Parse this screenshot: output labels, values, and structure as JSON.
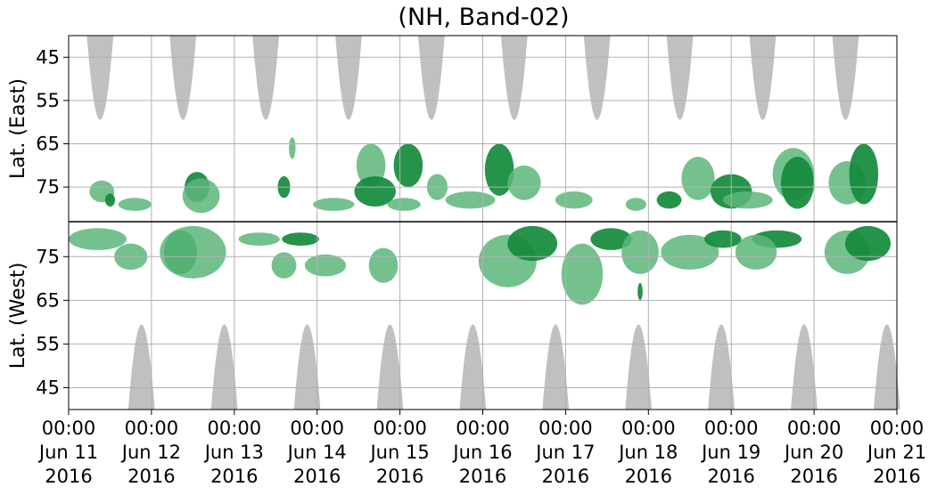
{
  "chart_data": {
    "type": "heatmap",
    "title": "(NH, Band-02)",
    "panels": [
      {
        "name": "East",
        "ylabel": "Lat. (East)",
        "yticks": [
          45,
          55,
          65,
          75
        ],
        "ylim": [
          40,
          83
        ]
      },
      {
        "name": "West",
        "ylabel": "Lat. (West)",
        "yticks": [
          75,
          65,
          55,
          45
        ],
        "ylim": [
          83,
          40
        ]
      }
    ],
    "x_ticks": [
      {
        "time": "00:00",
        "date": "Jun 11",
        "year": "2016"
      },
      {
        "time": "00:00",
        "date": "Jun 12",
        "year": "2016"
      },
      {
        "time": "00:00",
        "date": "Jun 13",
        "year": "2016"
      },
      {
        "time": "00:00",
        "date": "Jun 14",
        "year": "2016"
      },
      {
        "time": "00:00",
        "date": "Jun 15",
        "year": "2016"
      },
      {
        "time": "00:00",
        "date": "Jun 16",
        "year": "2016"
      },
      {
        "time": "00:00",
        "date": "Jun 17",
        "year": "2016"
      },
      {
        "time": "00:00",
        "date": "Jun 18",
        "year": "2016"
      },
      {
        "time": "00:00",
        "date": "Jun 19",
        "year": "2016"
      },
      {
        "time": "00:00",
        "date": "Jun 20",
        "year": "2016"
      },
      {
        "time": "00:00",
        "date": "Jun 21",
        "year": "2016"
      }
    ],
    "grid": true,
    "colors": {
      "shade": "#c0c0c0",
      "light": "#5cb67a",
      "dark": "#138a3c",
      "grid": "#b0b0b0"
    },
    "shade_regions": [
      {
        "panel": "East",
        "day": 0.38,
        "half_width_days": 0.16,
        "min_lat": 59.5
      },
      {
        "panel": "East",
        "day": 1.38,
        "half_width_days": 0.16,
        "min_lat": 59.5
      },
      {
        "panel": "East",
        "day": 2.38,
        "half_width_days": 0.16,
        "min_lat": 59.5
      },
      {
        "panel": "East",
        "day": 3.38,
        "half_width_days": 0.16,
        "min_lat": 59.5
      },
      {
        "panel": "East",
        "day": 4.38,
        "half_width_days": 0.16,
        "min_lat": 59.5
      },
      {
        "panel": "East",
        "day": 5.38,
        "half_width_days": 0.16,
        "min_lat": 59.5
      },
      {
        "panel": "East",
        "day": 6.38,
        "half_width_days": 0.16,
        "min_lat": 59.5
      },
      {
        "panel": "East",
        "day": 7.38,
        "half_width_days": 0.16,
        "min_lat": 59.5
      },
      {
        "panel": "East",
        "day": 8.38,
        "half_width_days": 0.16,
        "min_lat": 59.5
      },
      {
        "panel": "East",
        "day": 9.38,
        "half_width_days": 0.16,
        "min_lat": 59.5
      },
      {
        "panel": "West",
        "day": 0.88,
        "half_width_days": 0.16,
        "min_lat": 59.5
      },
      {
        "panel": "West",
        "day": 1.88,
        "half_width_days": 0.16,
        "min_lat": 59.5
      },
      {
        "panel": "West",
        "day": 2.88,
        "half_width_days": 0.16,
        "min_lat": 59.5
      },
      {
        "panel": "West",
        "day": 3.88,
        "half_width_days": 0.16,
        "min_lat": 59.5
      },
      {
        "panel": "West",
        "day": 4.88,
        "half_width_days": 0.16,
        "min_lat": 59.5
      },
      {
        "panel": "West",
        "day": 5.88,
        "half_width_days": 0.16,
        "min_lat": 59.5
      },
      {
        "panel": "West",
        "day": 6.88,
        "half_width_days": 0.16,
        "min_lat": 59.5
      },
      {
        "panel": "West",
        "day": 7.88,
        "half_width_days": 0.16,
        "min_lat": 59.5
      },
      {
        "panel": "West",
        "day": 8.88,
        "half_width_days": 0.16,
        "min_lat": 59.5
      },
      {
        "panel": "West",
        "day": 9.88,
        "half_width_days": 0.16,
        "min_lat": 59.5
      }
    ],
    "blobs": [
      {
        "panel": "East",
        "day": 0.4,
        "lat": 76,
        "day_w": 0.3,
        "lat_h": 5,
        "level": "light"
      },
      {
        "panel": "East",
        "day": 0.5,
        "lat": 78,
        "day_w": 0.12,
        "lat_h": 3,
        "level": "dark"
      },
      {
        "panel": "East",
        "day": 0.8,
        "lat": 79,
        "day_w": 0.4,
        "lat_h": 3,
        "level": "light"
      },
      {
        "panel": "East",
        "day": 1.55,
        "lat": 75,
        "day_w": 0.3,
        "lat_h": 7,
        "level": "dark"
      },
      {
        "panel": "East",
        "day": 1.6,
        "lat": 77,
        "day_w": 0.45,
        "lat_h": 8,
        "level": "light"
      },
      {
        "panel": "East",
        "day": 2.7,
        "lat": 66,
        "day_w": 0.08,
        "lat_h": 5,
        "level": "light"
      },
      {
        "panel": "East",
        "day": 2.6,
        "lat": 75,
        "day_w": 0.15,
        "lat_h": 5,
        "level": "dark"
      },
      {
        "panel": "East",
        "day": 3.2,
        "lat": 79,
        "day_w": 0.5,
        "lat_h": 3,
        "level": "light"
      },
      {
        "panel": "East",
        "day": 3.65,
        "lat": 70,
        "day_w": 0.35,
        "lat_h": 10,
        "level": "light"
      },
      {
        "panel": "East",
        "day": 3.7,
        "lat": 76,
        "day_w": 0.5,
        "lat_h": 7,
        "level": "dark"
      },
      {
        "panel": "East",
        "day": 4.05,
        "lat": 79,
        "day_w": 0.4,
        "lat_h": 3,
        "level": "light"
      },
      {
        "panel": "East",
        "day": 4.1,
        "lat": 70,
        "day_w": 0.35,
        "lat_h": 10,
        "level": "dark"
      },
      {
        "panel": "East",
        "day": 4.45,
        "lat": 75,
        "day_w": 0.25,
        "lat_h": 6,
        "level": "light"
      },
      {
        "panel": "East",
        "day": 4.85,
        "lat": 78,
        "day_w": 0.6,
        "lat_h": 4,
        "level": "light"
      },
      {
        "panel": "East",
        "day": 5.2,
        "lat": 71,
        "day_w": 0.35,
        "lat_h": 12,
        "level": "dark"
      },
      {
        "panel": "East",
        "day": 5.5,
        "lat": 74,
        "day_w": 0.4,
        "lat_h": 8,
        "level": "light"
      },
      {
        "panel": "East",
        "day": 6.1,
        "lat": 78,
        "day_w": 0.45,
        "lat_h": 4,
        "level": "light"
      },
      {
        "panel": "East",
        "day": 6.85,
        "lat": 79,
        "day_w": 0.25,
        "lat_h": 3,
        "level": "light"
      },
      {
        "panel": "East",
        "day": 7.25,
        "lat": 78,
        "day_w": 0.3,
        "lat_h": 4,
        "level": "dark"
      },
      {
        "panel": "East",
        "day": 7.6,
        "lat": 73,
        "day_w": 0.4,
        "lat_h": 10,
        "level": "light"
      },
      {
        "panel": "East",
        "day": 8.0,
        "lat": 76,
        "day_w": 0.5,
        "lat_h": 8,
        "level": "dark"
      },
      {
        "panel": "East",
        "day": 8.2,
        "lat": 78,
        "day_w": 0.6,
        "lat_h": 4,
        "level": "light"
      },
      {
        "panel": "East",
        "day": 8.75,
        "lat": 72,
        "day_w": 0.5,
        "lat_h": 12,
        "level": "light"
      },
      {
        "panel": "East",
        "day": 8.8,
        "lat": 74,
        "day_w": 0.4,
        "lat_h": 12,
        "level": "dark"
      },
      {
        "panel": "East",
        "day": 9.4,
        "lat": 74,
        "day_w": 0.45,
        "lat_h": 10,
        "level": "light"
      },
      {
        "panel": "East",
        "day": 9.6,
        "lat": 72,
        "day_w": 0.35,
        "lat_h": 14,
        "level": "dark"
      },
      {
        "panel": "West",
        "day": 0.35,
        "lat": 79,
        "day_w": 0.7,
        "lat_h": 5,
        "level": "light"
      },
      {
        "panel": "West",
        "day": 0.75,
        "lat": 75,
        "day_w": 0.4,
        "lat_h": 6,
        "level": "light"
      },
      {
        "panel": "West",
        "day": 1.35,
        "lat": 76,
        "day_w": 0.4,
        "lat_h": 10,
        "level": "dark"
      },
      {
        "panel": "West",
        "day": 1.5,
        "lat": 76,
        "day_w": 0.8,
        "lat_h": 12,
        "level": "light"
      },
      {
        "panel": "West",
        "day": 2.3,
        "lat": 79,
        "day_w": 0.5,
        "lat_h": 3,
        "level": "light"
      },
      {
        "panel": "West",
        "day": 2.8,
        "lat": 79,
        "day_w": 0.45,
        "lat_h": 3,
        "level": "dark"
      },
      {
        "panel": "West",
        "day": 2.6,
        "lat": 73,
        "day_w": 0.3,
        "lat_h": 6,
        "level": "light"
      },
      {
        "panel": "West",
        "day": 3.8,
        "lat": 73,
        "day_w": 0.35,
        "lat_h": 8,
        "level": "light"
      },
      {
        "panel": "West",
        "day": 3.1,
        "lat": 73,
        "day_w": 0.5,
        "lat_h": 5,
        "level": "light"
      },
      {
        "panel": "West",
        "day": 5.3,
        "lat": 74,
        "day_w": 0.7,
        "lat_h": 12,
        "level": "light"
      },
      {
        "panel": "West",
        "day": 5.6,
        "lat": 78,
        "day_w": 0.6,
        "lat_h": 8,
        "level": "dark"
      },
      {
        "panel": "West",
        "day": 6.2,
        "lat": 71,
        "day_w": 0.5,
        "lat_h": 14,
        "level": "light"
      },
      {
        "panel": "West",
        "day": 6.55,
        "lat": 79,
        "day_w": 0.5,
        "lat_h": 5,
        "level": "dark"
      },
      {
        "panel": "West",
        "day": 6.9,
        "lat": 76,
        "day_w": 0.45,
        "lat_h": 10,
        "level": "light"
      },
      {
        "panel": "West",
        "day": 6.9,
        "lat": 67,
        "day_w": 0.06,
        "lat_h": 4,
        "level": "dark"
      },
      {
        "panel": "West",
        "day": 7.5,
        "lat": 76,
        "day_w": 0.7,
        "lat_h": 8,
        "level": "light"
      },
      {
        "panel": "West",
        "day": 7.9,
        "lat": 79,
        "day_w": 0.45,
        "lat_h": 4,
        "level": "dark"
      },
      {
        "panel": "West",
        "day": 8.55,
        "lat": 79,
        "day_w": 0.6,
        "lat_h": 4,
        "level": "dark"
      },
      {
        "panel": "West",
        "day": 8.3,
        "lat": 76,
        "day_w": 0.5,
        "lat_h": 8,
        "level": "light"
      },
      {
        "panel": "West",
        "day": 9.4,
        "lat": 76,
        "day_w": 0.55,
        "lat_h": 10,
        "level": "light"
      },
      {
        "panel": "West",
        "day": 9.65,
        "lat": 78,
        "day_w": 0.55,
        "lat_h": 8,
        "level": "dark"
      }
    ]
  }
}
